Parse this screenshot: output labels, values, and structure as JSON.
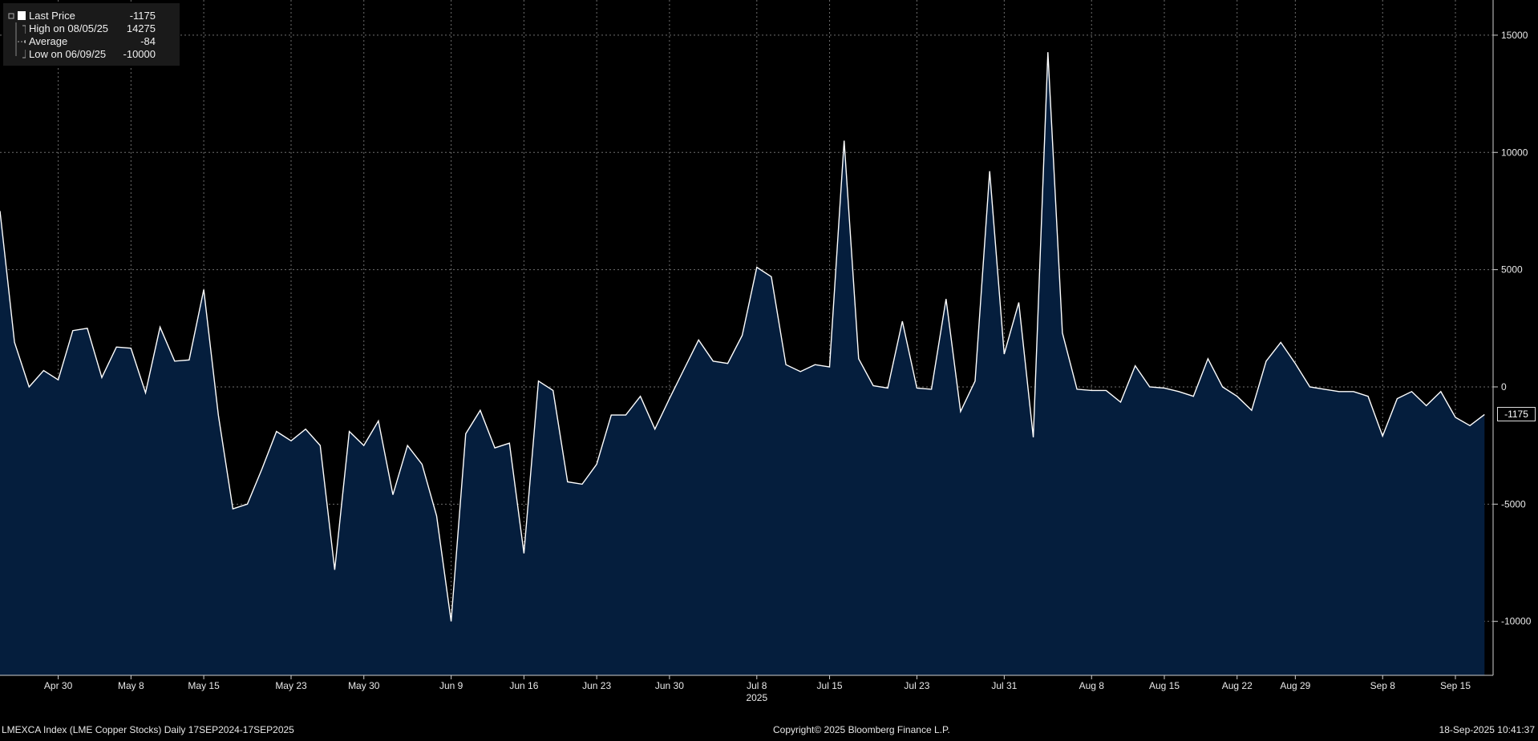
{
  "legend": {
    "last_price_label": "Last Price",
    "last_price_value": "-1175",
    "high_label": "High on 08/05/25",
    "high_value": "14275",
    "average_label": "Average",
    "average_value": "-84",
    "low_label": "Low on 06/09/25",
    "low_value": "-10000"
  },
  "footer": {
    "left": "LMEXCA Index (LME Copper Stocks)  Daily 17SEP2024-17SEP2025",
    "center": "Copyright© 2025 Bloomberg Finance L.P.",
    "right": "18-Sep-2025 10:41:37"
  },
  "last_value_label": "-1175",
  "colors": {
    "background": "#000000",
    "area_fill": "#051e3d",
    "line": "#ffffff",
    "grid": "#6e6e6e"
  },
  "chart_data": {
    "type": "area",
    "ylim": [
      -12300,
      16500
    ],
    "yticks": [
      15000,
      10000,
      5000,
      0,
      -5000,
      -10000
    ],
    "ytick_labels": [
      "15000",
      "10000",
      "5000",
      "0",
      "-5000",
      "-10000"
    ],
    "grid": true,
    "xtick_labels": [
      "Apr 30",
      "May 8",
      "May 15",
      "May 23",
      "May 30",
      "Jun 9",
      "Jun 16",
      "Jun 23",
      "Jun 30",
      "Jul 8",
      "Jul 15",
      "Jul 23",
      "Jul 31",
      "Aug 8",
      "Aug 15",
      "Aug 22",
      "Aug 29",
      "Sep 8",
      "Sep 15"
    ],
    "xtick_index": [
      4,
      9,
      14,
      20,
      25,
      31,
      36,
      41,
      46,
      52,
      57,
      63,
      69,
      75,
      80,
      85,
      89,
      95,
      100
    ],
    "year_label": "2025",
    "year_label_index": 52,
    "series": [
      {
        "values": [
          7500,
          1900,
          0,
          700,
          300,
          2400,
          2500,
          400,
          1700,
          1650,
          -250,
          2550,
          1100,
          1150,
          4150,
          -1200,
          -5200,
          -5000,
          -3500,
          -1900,
          -2300,
          -1800,
          -2500,
          -7800,
          -1900,
          -2500,
          -1450,
          -4600,
          -2500,
          -3300,
          -5500,
          -10000,
          -2000,
          -1000,
          -2600,
          -2400,
          -7100,
          250,
          -150,
          -4050,
          -4150,
          -3300,
          -1200,
          -1200,
          -400,
          -1800,
          -500,
          750,
          2000,
          1100,
          1000,
          2200,
          5100,
          4700,
          950,
          650,
          950,
          850,
          10500,
          1200,
          50,
          -50,
          2800,
          -50,
          -100,
          3750,
          -1050,
          250,
          9200,
          1400,
          3600,
          -2150,
          14275,
          2300,
          -100,
          -150,
          -150,
          -650,
          900,
          0,
          -50,
          -200,
          -400,
          1200,
          0,
          -400,
          -1000,
          1100,
          1900,
          1000,
          0,
          -100,
          -200,
          -200,
          -400,
          -2100,
          -500,
          -200,
          -800,
          -200,
          -1300,
          -1650,
          -1175
        ]
      }
    ]
  }
}
